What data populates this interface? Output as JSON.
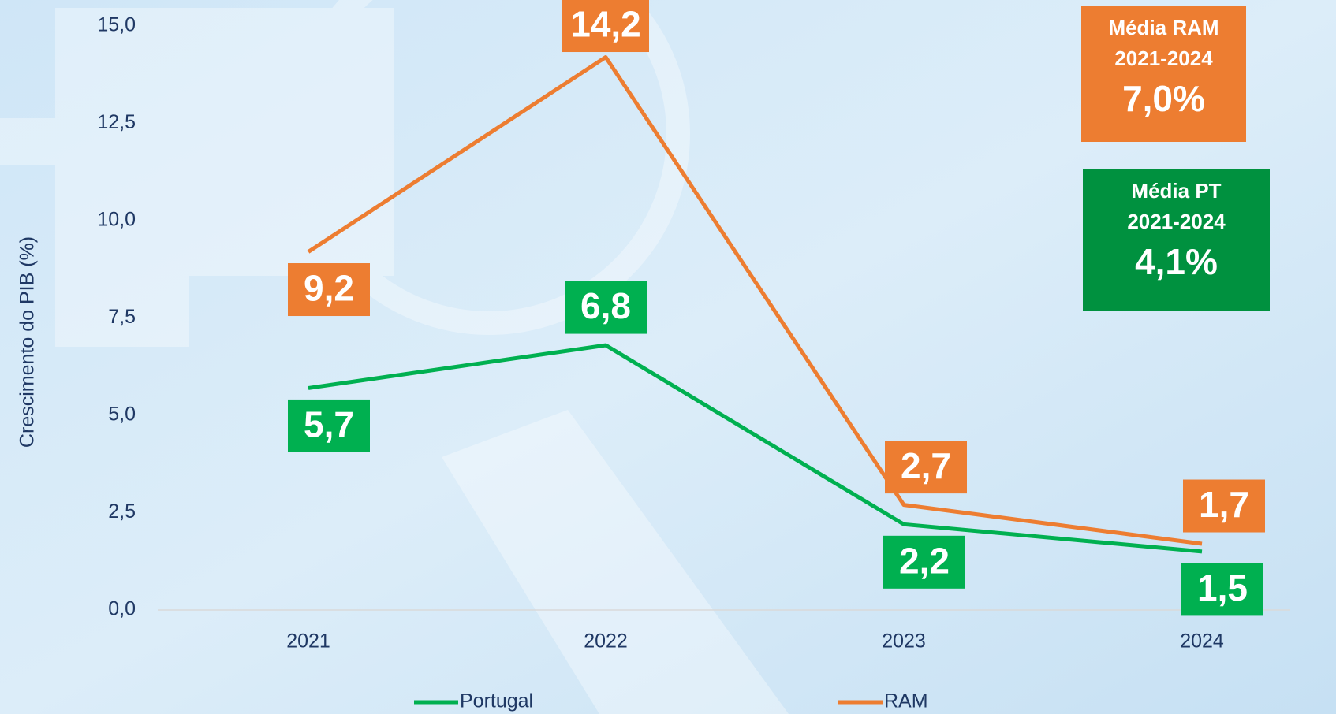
{
  "chart_data": {
    "type": "line",
    "categories": [
      "2021",
      "2022",
      "2023",
      "2024"
    ],
    "series": [
      {
        "name": "Portugal",
        "color": "#00b050",
        "values": [
          5.7,
          6.8,
          2.2,
          1.5
        ],
        "value_labels": [
          "5,7",
          "6,8",
          "2,2",
          "1,5"
        ]
      },
      {
        "name": "RAM",
        "color": "#ed7d31",
        "values": [
          9.2,
          14.2,
          2.7,
          1.7
        ],
        "value_labels": [
          "9,2",
          "14,2",
          "2,7",
          "1,7"
        ]
      }
    ],
    "ylabel": "Crescimento do PIB (%)",
    "ylim": [
      0,
      15
    ],
    "yticks": [
      {
        "value": 0,
        "label": "0,0"
      },
      {
        "value": 2.5,
        "label": "2,5"
      },
      {
        "value": 5,
        "label": "5,0"
      },
      {
        "value": 7.5,
        "label": "7,5"
      },
      {
        "value": 10,
        "label": "10,0"
      },
      {
        "value": 12.5,
        "label": "12,5"
      },
      {
        "value": 15,
        "label": "15,0"
      }
    ],
    "legend": "bottom",
    "annotations": [
      {
        "lines": [
          "Média RAM",
          "2021-2024",
          "7,0%"
        ],
        "color": "#ed7d31"
      },
      {
        "lines": [
          "Média PT",
          "2021-2024",
          "4,1%"
        ],
        "color": "#00913f"
      }
    ]
  }
}
